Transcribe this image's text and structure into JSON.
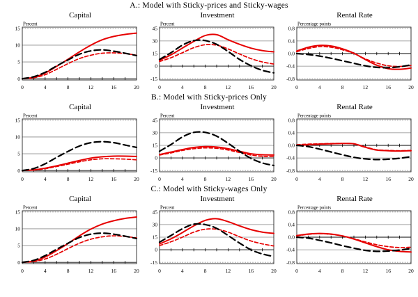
{
  "sections": [
    {
      "title": "A.:  Model with Sticky-prices and Sticky-wages"
    },
    {
      "title": "B.:  Model with Sticky-prices Only"
    },
    {
      "title": "C.:  Model with Sticky-wages Only"
    }
  ],
  "colors": {
    "red": "#e60000",
    "black": "#000000",
    "grid": "#8a8a8a",
    "frame": "#222222"
  },
  "chart_data": [
    {
      "type": "line",
      "panel": "A",
      "title": "Capital",
      "unit_label": "Percent",
      "x": [
        0,
        2,
        4,
        6,
        8,
        10,
        12,
        14,
        16,
        18,
        20
      ],
      "xticks": [
        0,
        4,
        8,
        12,
        16,
        20
      ],
      "ylim": [
        0,
        15
      ],
      "ytick_vals": [
        0,
        5,
        10,
        15
      ],
      "ytick_labels": [
        "0",
        "5",
        "10",
        "15"
      ],
      "grid": true,
      "legend": "none",
      "series": [
        {
          "name": "short-dashed red line",
          "color": "#e60000",
          "width": 1.7,
          "dash": "5 3",
          "values": [
            0,
            0.3,
            1.2,
            2.8,
            4.5,
            6.0,
            7.0,
            7.6,
            7.7,
            7.5,
            7.0
          ]
        },
        {
          "name": "solid red line",
          "color": "#e60000",
          "width": 2,
          "dash": "",
          "values": [
            0,
            0.4,
            1.7,
            3.7,
            5.8,
            8.0,
            10.0,
            11.6,
            12.6,
            13.2,
            13.6
          ]
        },
        {
          "name": "long-dashed black line",
          "color": "#000000",
          "width": 2.2,
          "dash": "9 5",
          "values": [
            0,
            0.6,
            1.9,
            3.8,
            5.6,
            7.3,
            8.3,
            8.6,
            8.2,
            7.6,
            6.9
          ]
        }
      ]
    },
    {
      "type": "line",
      "panel": "A",
      "title": "Investment",
      "unit_label": "Percent",
      "x": [
        0,
        2,
        4,
        6,
        8,
        10,
        12,
        14,
        16,
        18,
        20
      ],
      "xticks": [
        0,
        4,
        8,
        12,
        16,
        20
      ],
      "ylim": [
        -15,
        45
      ],
      "ytick_vals": [
        -15,
        0,
        15,
        30,
        45
      ],
      "ytick_labels": [
        "-15",
        "0",
        "15",
        "30",
        "45"
      ],
      "grid": true,
      "legend": "none",
      "series": [
        {
          "name": "short-dashed red line",
          "color": "#e60000",
          "width": 1.7,
          "dash": "5 3",
          "values": [
            5.5,
            10,
            16,
            22,
            25.5,
            25,
            20.5,
            14.5,
            9,
            5,
            2.5
          ]
        },
        {
          "name": "solid red line",
          "color": "#e60000",
          "width": 2,
          "dash": "",
          "values": [
            7,
            13.5,
            21.5,
            29.5,
            36.5,
            37.5,
            31.5,
            26,
            21.5,
            18.5,
            17
          ]
        },
        {
          "name": "long-dashed black line",
          "color": "#000000",
          "width": 2.2,
          "dash": "9 5",
          "values": [
            8,
            16,
            25,
            30.5,
            30.5,
            26,
            17.5,
            8,
            0.5,
            -5,
            -8
          ]
        }
      ]
    },
    {
      "type": "line",
      "panel": "A",
      "title": "Rental Rate",
      "unit_label": "Percentage points",
      "x": [
        0,
        2,
        4,
        6,
        8,
        10,
        12,
        14,
        16,
        18,
        20
      ],
      "xticks": [
        0,
        4,
        8,
        12,
        16,
        20
      ],
      "ylim": [
        -0.8,
        0.8
      ],
      "ytick_vals": [
        -0.8,
        -0.4,
        0,
        0.4,
        0.8
      ],
      "ytick_labels": [
        "-0.8",
        "-0.4",
        "0.0",
        "0.4",
        "0.8"
      ],
      "grid": true,
      "legend": "none",
      "series": [
        {
          "name": "short-dashed red line",
          "color": "#e60000",
          "width": 1.7,
          "dash": "5 3",
          "values": [
            0.06,
            0.16,
            0.22,
            0.2,
            0.12,
            0.0,
            -0.17,
            -0.3,
            -0.39,
            -0.41,
            -0.38
          ]
        },
        {
          "name": "solid red line",
          "color": "#e60000",
          "width": 2,
          "dash": "",
          "values": [
            0.08,
            0.2,
            0.26,
            0.24,
            0.15,
            0.01,
            -0.19,
            -0.37,
            -0.48,
            -0.5,
            -0.46
          ]
        },
        {
          "name": "long-dashed black line",
          "color": "#000000",
          "width": 2.2,
          "dash": "9 5",
          "values": [
            0.0,
            -0.03,
            -0.08,
            -0.15,
            -0.23,
            -0.31,
            -0.39,
            -0.44,
            -0.45,
            -0.42,
            -0.36
          ]
        }
      ]
    },
    {
      "type": "line",
      "panel": "B",
      "title": "Capital",
      "unit_label": "Percent",
      "x": [
        0,
        2,
        4,
        6,
        8,
        10,
        12,
        14,
        16,
        18,
        20
      ],
      "xticks": [
        0,
        4,
        8,
        12,
        16,
        20
      ],
      "ylim": [
        0,
        15
      ],
      "ytick_vals": [
        0,
        5,
        10,
        15
      ],
      "ytick_labels": [
        "0",
        "5",
        "10",
        "15"
      ],
      "grid": true,
      "legend": "none",
      "series": [
        {
          "name": "short-dashed red line",
          "color": "#e60000",
          "width": 1.7,
          "dash": "5 3",
          "values": [
            0,
            0.15,
            0.55,
            1.2,
            1.9,
            2.6,
            3.2,
            3.5,
            3.5,
            3.4,
            3.2
          ]
        },
        {
          "name": "solid red line",
          "color": "#e60000",
          "width": 2,
          "dash": "",
          "values": [
            0,
            0.2,
            0.7,
            1.4,
            2.2,
            3.0,
            3.7,
            4.1,
            4.3,
            4.3,
            4.2
          ]
        },
        {
          "name": "long-dashed black line",
          "color": "#000000",
          "width": 2.2,
          "dash": "9 5",
          "values": [
            0,
            0.6,
            2.0,
            3.9,
            5.7,
            7.3,
            8.3,
            8.6,
            8.3,
            7.6,
            6.9
          ]
        }
      ]
    },
    {
      "type": "line",
      "panel": "B",
      "title": "Investment",
      "unit_label": "Percent",
      "x": [
        0,
        2,
        4,
        6,
        8,
        10,
        12,
        14,
        16,
        18,
        20
      ],
      "xticks": [
        0,
        4,
        8,
        12,
        16,
        20
      ],
      "ylim": [
        -15,
        45
      ],
      "ytick_vals": [
        -15,
        0,
        15,
        30,
        45
      ],
      "ytick_labels": [
        "-15",
        "0",
        "15",
        "30",
        "45"
      ],
      "grid": true,
      "legend": "none",
      "series": [
        {
          "name": "short-dashed red line",
          "color": "#e60000",
          "width": 1.7,
          "dash": "5 3",
          "values": [
            3.5,
            6,
            9,
            11,
            12,
            11.5,
            9.5,
            6.5,
            3.5,
            2,
            1.8
          ]
        },
        {
          "name": "solid red line",
          "color": "#e60000",
          "width": 2,
          "dash": "",
          "values": [
            4,
            7,
            10,
            12.5,
            13.5,
            13,
            11,
            8,
            5,
            3.8,
            3.5
          ]
        },
        {
          "name": "long-dashed black line",
          "color": "#000000",
          "width": 2.2,
          "dash": "9 5",
          "values": [
            8,
            16,
            25,
            30.5,
            30.5,
            26,
            17.5,
            8,
            -0.5,
            -6,
            -9
          ]
        }
      ]
    },
    {
      "type": "line",
      "panel": "B",
      "title": "Rental Rate",
      "unit_label": "Percentage points",
      "x": [
        0,
        2,
        4,
        6,
        8,
        10,
        12,
        14,
        16,
        18,
        20
      ],
      "xticks": [
        0,
        4,
        8,
        12,
        16,
        20
      ],
      "ylim": [
        -0.8,
        0.8
      ],
      "ytick_vals": [
        -0.8,
        -0.4,
        0,
        0.4,
        0.8
      ],
      "ytick_labels": [
        "-0.8",
        "-0.4",
        "0.0",
        "0.4",
        "0.8"
      ],
      "grid": true,
      "legend": "none",
      "series": [
        {
          "name": "short-dashed red line",
          "color": "#e60000",
          "width": 1.7,
          "dash": "5 3",
          "values": [
            0.02,
            0.04,
            0.05,
            0.06,
            0.06,
            0.05,
            -0.05,
            -0.14,
            -0.16,
            -0.17,
            -0.16
          ]
        },
        {
          "name": "solid red line",
          "color": "#e60000",
          "width": 2,
          "dash": "",
          "values": [
            0.0,
            0.02,
            0.04,
            0.05,
            0.06,
            0.05,
            -0.06,
            -0.15,
            -0.17,
            -0.18,
            -0.17
          ]
        },
        {
          "name": "long-dashed black line",
          "color": "#000000",
          "width": 2.2,
          "dash": "9 5",
          "values": [
            0.0,
            -0.04,
            -0.12,
            -0.21,
            -0.3,
            -0.38,
            -0.43,
            -0.45,
            -0.44,
            -0.41,
            -0.36
          ]
        }
      ]
    },
    {
      "type": "line",
      "panel": "C",
      "title": "Capital",
      "unit_label": "Percent",
      "x": [
        0,
        2,
        4,
        6,
        8,
        10,
        12,
        14,
        16,
        18,
        20
      ],
      "xticks": [
        0,
        4,
        8,
        12,
        16,
        20
      ],
      "ylim": [
        0,
        15
      ],
      "ytick_vals": [
        0,
        5,
        10,
        15
      ],
      "ytick_labels": [
        "0",
        "5",
        "10",
        "15"
      ],
      "grid": true,
      "legend": "none",
      "series": [
        {
          "name": "short-dashed red line",
          "color": "#e60000",
          "width": 1.7,
          "dash": "5 3",
          "values": [
            0,
            0.25,
            1.0,
            2.4,
            4.1,
            5.7,
            6.9,
            7.6,
            7.9,
            7.7,
            7.3
          ]
        },
        {
          "name": "solid red line",
          "color": "#e60000",
          "width": 2,
          "dash": "",
          "values": [
            0,
            0.4,
            1.6,
            3.5,
            5.6,
            7.9,
            9.9,
            11.4,
            12.4,
            13.1,
            13.5
          ]
        },
        {
          "name": "long-dashed black line",
          "color": "#000000",
          "width": 2.2,
          "dash": "9 5",
          "values": [
            0,
            0.6,
            2.0,
            3.9,
            5.7,
            7.4,
            8.4,
            8.7,
            8.4,
            7.8,
            7.1
          ]
        }
      ]
    },
    {
      "type": "line",
      "panel": "C",
      "title": "Investment",
      "unit_label": "Percent",
      "x": [
        0,
        2,
        4,
        6,
        8,
        10,
        12,
        14,
        16,
        18,
        20
      ],
      "xticks": [
        0,
        4,
        8,
        12,
        16,
        20
      ],
      "ylim": [
        -15,
        45
      ],
      "ytick_vals": [
        -15,
        0,
        15,
        30,
        45
      ],
      "ytick_labels": [
        "-15",
        "0",
        "15",
        "30",
        "45"
      ],
      "grid": true,
      "legend": "none",
      "series": [
        {
          "name": "short-dashed red line",
          "color": "#e60000",
          "width": 1.7,
          "dash": "5 3",
          "values": [
            5,
            9.5,
            15,
            21,
            24.5,
            24.5,
            21,
            15.5,
            10.5,
            7,
            4.5
          ]
        },
        {
          "name": "solid red line",
          "color": "#e60000",
          "width": 2,
          "dash": "",
          "values": [
            7,
            13,
            20.5,
            28.5,
            35,
            37,
            33.5,
            28.5,
            24,
            21,
            19.5
          ]
        },
        {
          "name": "long-dashed black line",
          "color": "#000000",
          "width": 2.2,
          "dash": "9 5",
          "values": [
            9,
            17,
            25,
            30.5,
            30,
            25.5,
            17,
            8,
            0,
            -5,
            -8
          ]
        }
      ]
    },
    {
      "type": "line",
      "panel": "C",
      "title": "Rental Rate",
      "unit_label": "Percentage points",
      "x": [
        0,
        2,
        4,
        6,
        8,
        10,
        12,
        14,
        16,
        18,
        20
      ],
      "xticks": [
        0,
        4,
        8,
        12,
        16,
        20
      ],
      "ylim": [
        -0.8,
        0.8
      ],
      "ytick_vals": [
        -0.8,
        -0.4,
        0,
        0.4,
        0.8
      ],
      "ytick_labels": [
        "-0.8",
        "-0.4",
        "0.0",
        "0.4",
        "0.8"
      ],
      "grid": true,
      "legend": "none",
      "series": [
        {
          "name": "short-dashed red line",
          "color": "#e60000",
          "width": 1.7,
          "dash": "5 3",
          "values": [
            0.04,
            0.09,
            0.11,
            0.09,
            0.04,
            -0.05,
            -0.15,
            -0.24,
            -0.3,
            -0.33,
            -0.32
          ]
        },
        {
          "name": "solid red line",
          "color": "#e60000",
          "width": 2,
          "dash": "",
          "values": [
            0.05,
            0.1,
            0.12,
            0.1,
            0.04,
            -0.06,
            -0.18,
            -0.3,
            -0.4,
            -0.45,
            -0.47
          ]
        },
        {
          "name": "long-dashed black line",
          "color": "#000000",
          "width": 2.2,
          "dash": "9 5",
          "values": [
            0.0,
            -0.03,
            -0.1,
            -0.18,
            -0.27,
            -0.35,
            -0.42,
            -0.45,
            -0.44,
            -0.41,
            -0.36
          ]
        }
      ]
    }
  ]
}
